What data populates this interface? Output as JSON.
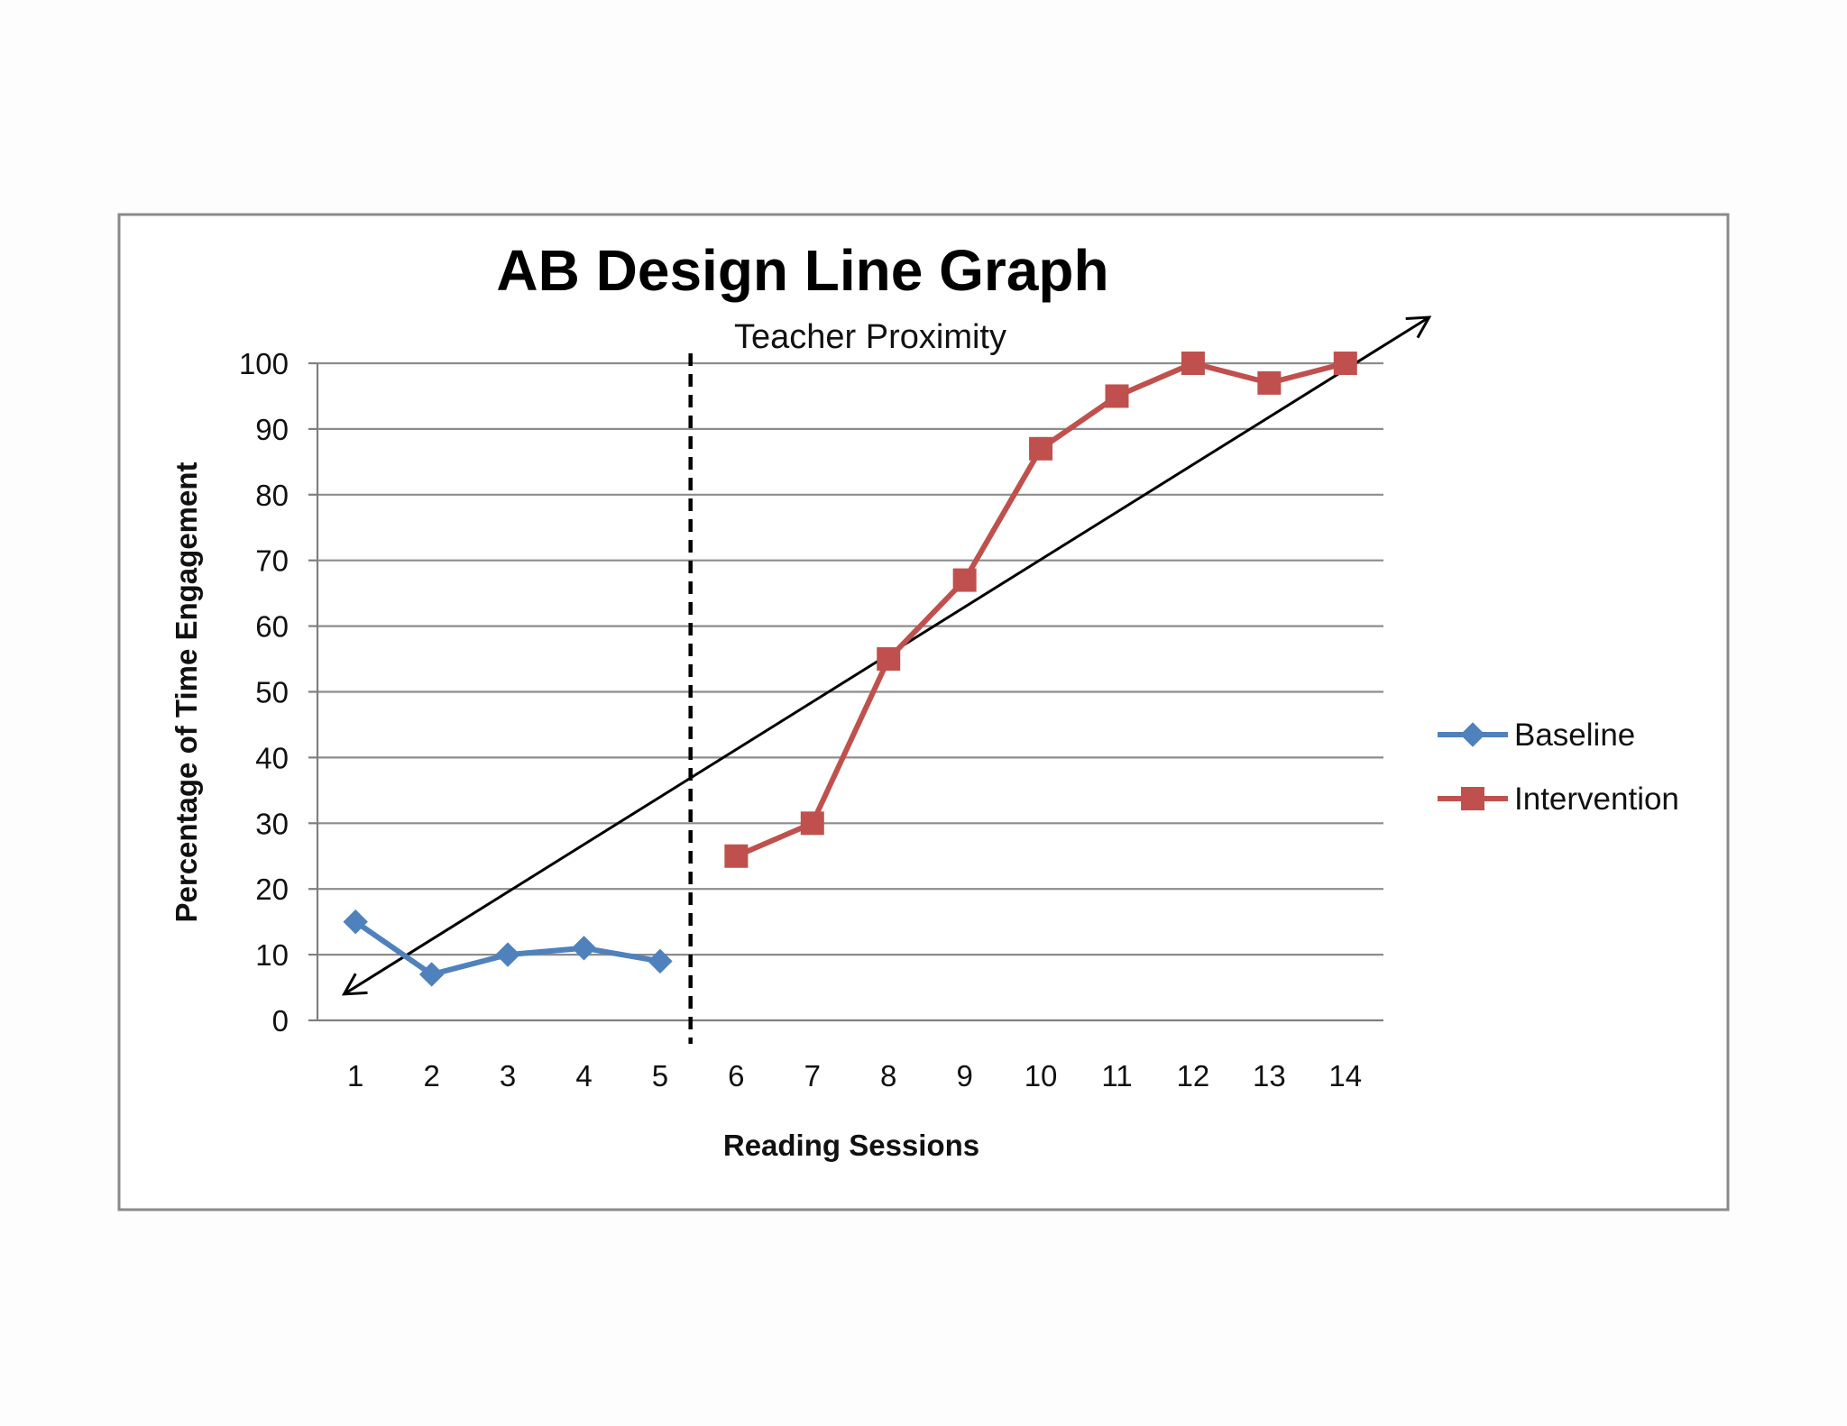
{
  "chart_data": {
    "type": "line",
    "title": "AB Design Line Graph",
    "phase_label": "Teacher Proximity",
    "xlabel": "Reading Sessions",
    "ylabel": "Percentage of Time Engagement",
    "categories": [
      "1",
      "2",
      "3",
      "4",
      "5",
      "6",
      "7",
      "8",
      "9",
      "10",
      "11",
      "12",
      "13",
      "14"
    ],
    "y_ticks": [
      "0",
      "10",
      "20",
      "30",
      "40",
      "50",
      "60",
      "70",
      "80",
      "90",
      "100"
    ],
    "ylim": [
      0,
      100
    ],
    "grid": true,
    "legend_position": "right",
    "phase_change_after_session": 5,
    "series": [
      {
        "name": "Baseline",
        "color": "#4f81bd",
        "marker": "diamond",
        "x": [
          1,
          2,
          3,
          4,
          5
        ],
        "values": [
          15,
          7,
          10,
          11,
          9
        ]
      },
      {
        "name": "Intervention",
        "color": "#c0504d",
        "marker": "square",
        "x": [
          6,
          7,
          8,
          9,
          10,
          11,
          12,
          13,
          14
        ],
        "values": [
          25,
          30,
          55,
          67,
          87,
          95,
          100,
          97,
          100
        ]
      }
    ],
    "trend_arrow": {
      "from": [
        0.85,
        4
      ],
      "to": [
        15.1,
        107
      ],
      "color": "#000000"
    }
  }
}
